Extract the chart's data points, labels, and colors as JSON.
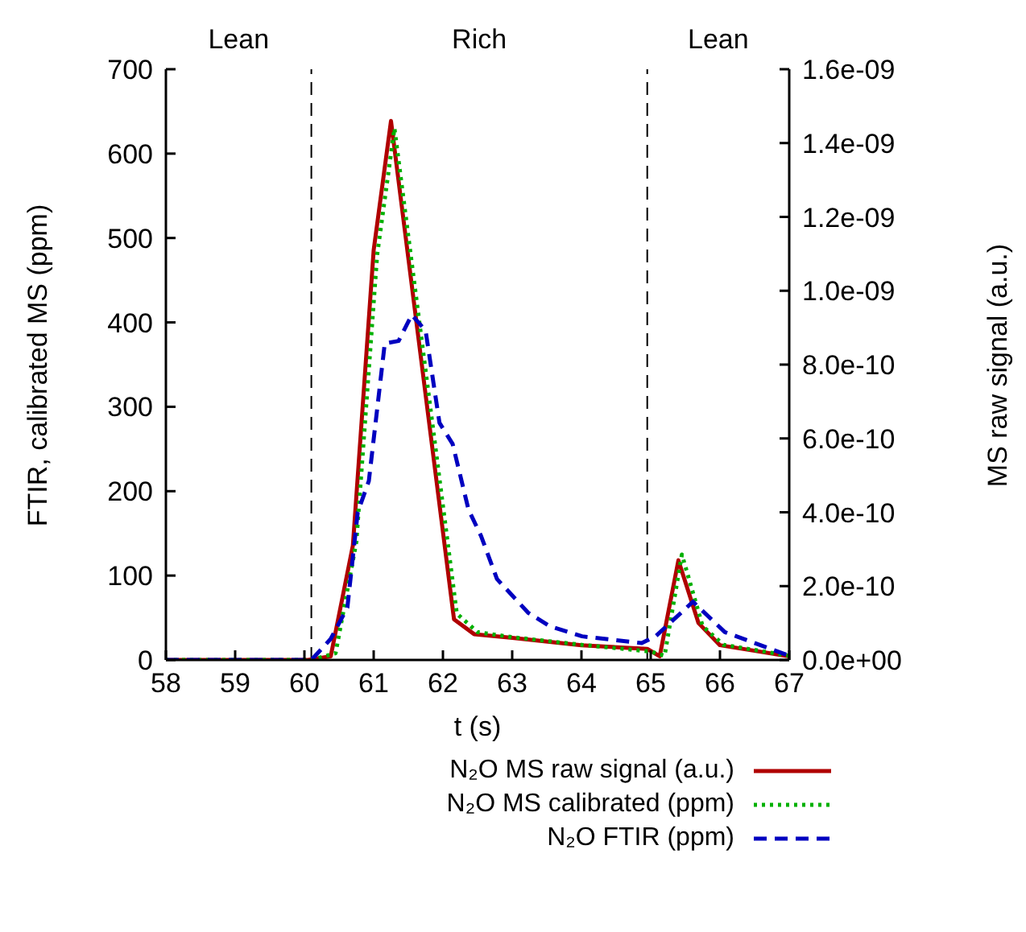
{
  "chart_data": {
    "type": "line",
    "xlabel": "t (s)",
    "ylabel": "FTIR, calibrated MS (ppm)",
    "y2label": "MS raw signal (a.u.)",
    "xlim": [
      58,
      67
    ],
    "xticks": [
      58,
      59,
      60,
      61,
      62,
      63,
      64,
      65,
      66,
      67
    ],
    "ylim": [
      0,
      700
    ],
    "yticks": [
      0,
      100,
      200,
      300,
      400,
      500,
      600,
      700
    ],
    "y2lim": [
      0,
      1.6e-09
    ],
    "y2ticks": [
      {
        "value": 0,
        "label": "0.0e+00"
      },
      {
        "value": 2e-10,
        "label": "2.0e-10"
      },
      {
        "value": 4e-10,
        "label": "4.0e-10"
      },
      {
        "value": 6e-10,
        "label": "6.0e-10"
      },
      {
        "value": 8e-10,
        "label": "8.0e-10"
      },
      {
        "value": 1e-09,
        "label": "1.0e-09"
      },
      {
        "value": 1.2e-09,
        "label": "1.2e-09"
      },
      {
        "value": 1.4e-09,
        "label": "1.4e-09"
      },
      {
        "value": 1.6e-09,
        "label": "1.6e-09"
      }
    ],
    "legend": "bottom",
    "marker": "none",
    "ref_lines": [
      {
        "axis": "x",
        "value": 60.1,
        "color": "#000000",
        "line_style": "dashed"
      },
      {
        "axis": "x",
        "value": 64.95,
        "color": "#000000",
        "line_style": "dashed"
      }
    ],
    "annotations": [
      "Lean",
      "Rich",
      "Lean"
    ],
    "series": [
      {
        "name": "N₂O MS raw signal (a.u.)",
        "color": "#b00000",
        "line_style": "solid",
        "axis": "y2",
        "x": [
          58,
          60.05,
          60.38,
          60.7,
          61,
          61.25,
          62.16,
          62.45,
          63,
          64,
          64.95,
          65.13,
          65.4,
          65.69,
          66,
          67
        ],
        "values": [
          0,
          0,
          1e-11,
          3.1e-10,
          1.11e-09,
          1.46e-09,
          1.1e-10,
          7e-11,
          6e-11,
          4e-11,
          3e-11,
          1e-11,
          2.7e-10,
          1e-10,
          4e-11,
          1e-11
        ]
      },
      {
        "name": "N₂O MS calibrated (ppm)",
        "color": "#00b000",
        "line_style": "dotted",
        "x": [
          58,
          60.1,
          60.45,
          60.75,
          61.05,
          61.3,
          62.2,
          62.5,
          63,
          64,
          65,
          65.2,
          65.45,
          65.75,
          66.05,
          67
        ],
        "values": [
          0,
          0,
          8,
          140,
          480,
          630,
          55,
          33,
          27,
          18,
          10,
          5,
          125,
          40,
          18,
          5
        ]
      },
      {
        "name": "N₂O FTIR (ppm)",
        "color": "#0000c0",
        "line_style": "dashed",
        "x": [
          58,
          60.1,
          60.38,
          60.62,
          60.77,
          60.93,
          61.16,
          61.36,
          61.55,
          61.75,
          61.95,
          62.14,
          62.37,
          62.55,
          62.78,
          63.23,
          63.54,
          64.01,
          64.87,
          65.07,
          65.61,
          66.07,
          67
        ],
        "values": [
          0,
          0,
          25,
          62,
          175,
          212,
          375,
          378,
          409,
          390,
          281,
          256,
          178,
          147,
          96,
          56,
          40,
          28,
          20,
          28,
          69,
          33,
          5
        ]
      }
    ]
  }
}
